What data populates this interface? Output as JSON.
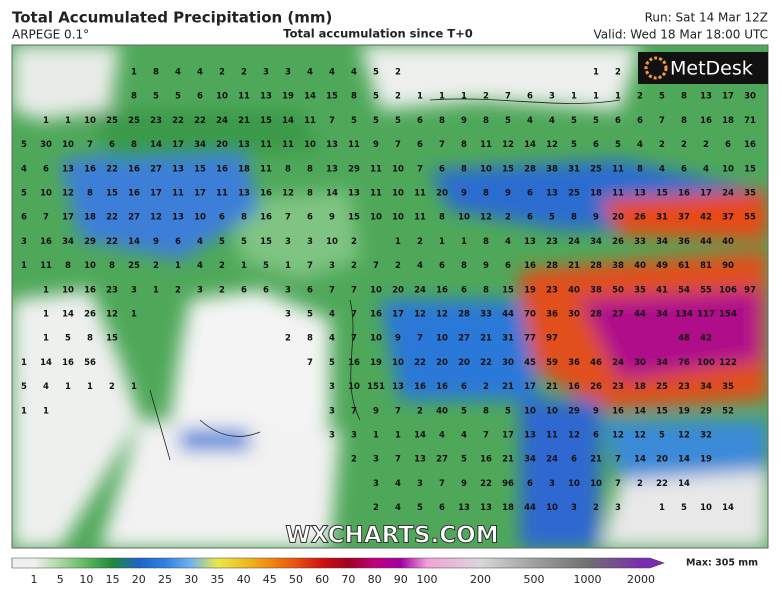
{
  "header": {
    "title": "Total Accumulated Precipitation (mm)",
    "model": "ARPEGE 0.1°",
    "subtitle": "Total accumulation since T+0",
    "run": "Run: Sat 14 Mar 12Z",
    "valid": "Valid: Wed 18 Mar 18:00 UTC"
  },
  "logo": "MetDesk",
  "watermark": "WXCHARTS.COM",
  "colorbar": {
    "labels": [
      "1",
      "5",
      "10",
      "15",
      "20",
      "25",
      "30",
      "35",
      "40",
      "45",
      "50",
      "60",
      "70",
      "80",
      "90",
      "100",
      "200",
      "500",
      "1000",
      "2000"
    ],
    "colors": [
      "#f0f0f0",
      "#a8d8a0",
      "#5cb85c",
      "#1f8a3a",
      "#1e64c8",
      "#3080e0",
      "#70b4f0",
      "#e8e84a",
      "#f0c020",
      "#f08a10",
      "#e85010",
      "#d01010",
      "#a00020",
      "#c00080",
      "#a000a0",
      "#f4a0d8",
      "#d8d8d8",
      "#a0a0a0",
      "#707070",
      "#7a2cb0"
    ],
    "max": "Max: 305 mm"
  },
  "map": {
    "rows": [
      [
        null,
        null,
        null,
        null,
        null,
        1,
        8,
        4,
        4,
        2,
        2,
        3,
        3,
        4,
        4,
        4,
        5,
        2,
        null,
        null,
        null,
        null,
        null,
        null,
        null,
        null,
        1,
        2,
        null,
        null,
        null,
        null,
        null,
        null
      ],
      [
        null,
        null,
        null,
        null,
        null,
        8,
        5,
        5,
        6,
        10,
        11,
        13,
        19,
        14,
        15,
        8,
        5,
        2,
        1,
        1,
        1,
        2,
        7,
        6,
        3,
        1,
        1,
        1,
        2,
        5,
        8,
        13,
        17,
        30
      ],
      [
        null,
        1,
        1,
        10,
        25,
        25,
        23,
        22,
        22,
        24,
        21,
        15,
        14,
        11,
        7,
        5,
        5,
        5,
        6,
        8,
        9,
        8,
        5,
        4,
        4,
        5,
        5,
        6,
        6,
        7,
        8,
        16,
        18,
        71
      ],
      [
        5,
        30,
        10,
        7,
        6,
        8,
        14,
        17,
        34,
        20,
        13,
        11,
        11,
        10,
        13,
        11,
        9,
        7,
        6,
        7,
        8,
        11,
        12,
        14,
        12,
        5,
        6,
        5,
        4,
        2,
        2,
        2,
        6,
        16
      ],
      [
        4,
        6,
        13,
        16,
        22,
        16,
        27,
        13,
        15,
        16,
        18,
        11,
        8,
        8,
        13,
        29,
        11,
        10,
        7,
        6,
        8,
        10,
        15,
        28,
        38,
        31,
        25,
        11,
        8,
        4,
        6,
        4,
        10,
        15
      ],
      [
        5,
        10,
        12,
        8,
        15,
        16,
        17,
        11,
        17,
        11,
        13,
        16,
        12,
        8,
        14,
        13,
        11,
        10,
        11,
        20,
        9,
        8,
        9,
        6,
        13,
        25,
        18,
        11,
        13,
        15,
        16,
        17,
        24,
        35
      ],
      [
        6,
        7,
        17,
        18,
        22,
        27,
        12,
        13,
        10,
        6,
        8,
        16,
        7,
        6,
        9,
        15,
        10,
        10,
        11,
        8,
        10,
        12,
        2,
        6,
        5,
        8,
        9,
        20,
        26,
        31,
        37,
        42,
        37,
        55
      ],
      [
        3,
        16,
        34,
        29,
        22,
        14,
        9,
        6,
        4,
        5,
        5,
        15,
        3,
        3,
        10,
        2,
        null,
        1,
        2,
        1,
        1,
        8,
        4,
        13,
        23,
        24,
        34,
        26,
        33,
        34,
        36,
        44,
        40,
        null
      ],
      [
        1,
        11,
        8,
        10,
        8,
        25,
        2,
        1,
        4,
        2,
        1,
        5,
        1,
        7,
        3,
        2,
        7,
        2,
        4,
        6,
        8,
        9,
        6,
        16,
        28,
        21,
        28,
        38,
        40,
        49,
        61,
        81,
        90,
        null
      ],
      [
        null,
        1,
        10,
        16,
        23,
        3,
        1,
        2,
        3,
        2,
        6,
        6,
        3,
        6,
        7,
        7,
        10,
        20,
        24,
        16,
        6,
        8,
        15,
        19,
        23,
        40,
        38,
        50,
        35,
        41,
        54,
        55,
        106,
        97
      ],
      [
        null,
        1,
        14,
        26,
        12,
        1,
        null,
        null,
        null,
        null,
        null,
        null,
        3,
        5,
        4,
        7,
        16,
        17,
        12,
        12,
        28,
        33,
        44,
        70,
        36,
        30,
        28,
        27,
        44,
        34,
        134,
        117,
        154,
        null
      ],
      [
        null,
        1,
        5,
        8,
        15,
        null,
        null,
        null,
        null,
        null,
        null,
        null,
        2,
        8,
        4,
        7,
        10,
        9,
        7,
        10,
        27,
        21,
        31,
        77,
        97,
        null,
        null,
        null,
        null,
        null,
        48,
        42,
        null,
        null
      ],
      [
        1,
        14,
        16,
        56,
        null,
        null,
        null,
        null,
        null,
        null,
        null,
        null,
        null,
        7,
        5,
        16,
        19,
        10,
        22,
        20,
        20,
        22,
        30,
        45,
        59,
        36,
        46,
        24,
        30,
        34,
        76,
        100,
        122,
        null
      ],
      [
        5,
        4,
        1,
        1,
        2,
        1,
        null,
        null,
        null,
        null,
        null,
        null,
        null,
        null,
        3,
        10,
        151,
        13,
        16,
        16,
        6,
        2,
        21,
        17,
        21,
        16,
        26,
        23,
        18,
        25,
        23,
        34,
        35,
        null
      ],
      [
        1,
        1,
        null,
        null,
        null,
        null,
        null,
        null,
        null,
        null,
        null,
        null,
        null,
        null,
        3,
        7,
        9,
        7,
        2,
        40,
        5,
        8,
        5,
        10,
        10,
        29,
        9,
        16,
        14,
        15,
        19,
        29,
        52,
        null
      ],
      [
        null,
        null,
        null,
        null,
        null,
        null,
        null,
        null,
        null,
        null,
        null,
        null,
        null,
        null,
        3,
        3,
        1,
        1,
        14,
        4,
        4,
        7,
        17,
        13,
        11,
        12,
        6,
        12,
        12,
        5,
        12,
        32,
        null,
        null
      ],
      [
        null,
        null,
        null,
        null,
        null,
        null,
        null,
        null,
        null,
        null,
        null,
        null,
        null,
        null,
        null,
        2,
        3,
        7,
        13,
        27,
        5,
        16,
        21,
        34,
        24,
        6,
        21,
        7,
        14,
        20,
        14,
        19,
        null,
        null
      ],
      [
        null,
        null,
        null,
        null,
        null,
        null,
        null,
        null,
        null,
        null,
        null,
        null,
        null,
        null,
        null,
        null,
        3,
        4,
        3,
        7,
        9,
        22,
        96,
        6,
        3,
        10,
        10,
        7,
        2,
        22,
        14,
        null,
        null,
        null
      ],
      [
        null,
        null,
        null,
        null,
        null,
        null,
        null,
        null,
        null,
        null,
        null,
        null,
        null,
        null,
        null,
        null,
        2,
        4,
        5,
        6,
        13,
        13,
        18,
        44,
        10,
        3,
        2,
        3,
        null,
        1,
        5,
        10,
        14,
        null
      ]
    ]
  }
}
